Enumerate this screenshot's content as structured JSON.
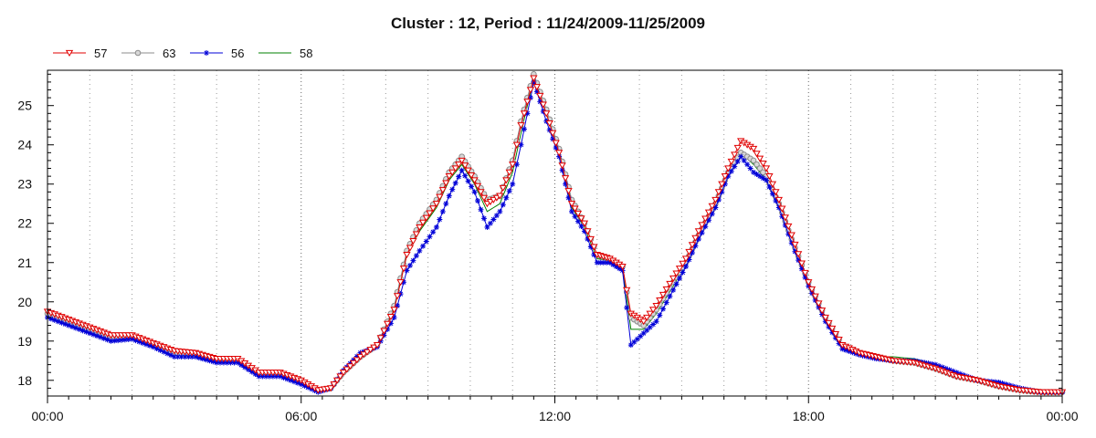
{
  "chart_data": {
    "type": "line",
    "title": "Cluster : 12, Period : 11/24/2009-11/25/2009",
    "xlabel": "",
    "ylabel": "",
    "x_tick_labels": [
      "00:00",
      "06:00",
      "12:00",
      "18:00",
      "00:00"
    ],
    "y_tick_labels": [
      "18",
      "19",
      "20",
      "21",
      "22",
      "23",
      "24",
      "25"
    ],
    "xlim": [
      0,
      24
    ],
    "ylim": [
      17.6,
      25.9
    ],
    "grid": true,
    "legend_position": "top-left",
    "series": [
      {
        "name": "57",
        "color": "#e00000",
        "marker": "triangle-down",
        "points": [
          [
            0,
            19.75
          ],
          [
            0.5,
            19.55
          ],
          [
            1,
            19.35
          ],
          [
            1.5,
            19.15
          ],
          [
            2,
            19.15
          ],
          [
            2.5,
            18.95
          ],
          [
            3,
            18.75
          ],
          [
            3.5,
            18.7
          ],
          [
            4,
            18.55
          ],
          [
            4.5,
            18.55
          ],
          [
            5,
            18.2
          ],
          [
            5.5,
            18.2
          ],
          [
            6,
            18.0
          ],
          [
            6.4,
            17.75
          ],
          [
            6.7,
            17.8
          ],
          [
            7,
            18.2
          ],
          [
            7.4,
            18.6
          ],
          [
            7.8,
            18.9
          ],
          [
            8.2,
            19.8
          ],
          [
            8.5,
            21.2
          ],
          [
            8.8,
            21.9
          ],
          [
            9.2,
            22.5
          ],
          [
            9.5,
            23.2
          ],
          [
            9.8,
            23.6
          ],
          [
            10.1,
            23.1
          ],
          [
            10.4,
            22.5
          ],
          [
            10.7,
            22.7
          ],
          [
            11.0,
            23.5
          ],
          [
            11.2,
            24.5
          ],
          [
            11.5,
            25.7
          ],
          [
            11.8,
            24.8
          ],
          [
            12.1,
            23.8
          ],
          [
            12.4,
            22.5
          ],
          [
            12.7,
            22.0
          ],
          [
            13.0,
            21.2
          ],
          [
            13.3,
            21.1
          ],
          [
            13.6,
            20.9
          ],
          [
            13.8,
            19.7
          ],
          [
            14.1,
            19.5
          ],
          [
            14.4,
            19.9
          ],
          [
            14.8,
            20.6
          ],
          [
            15.1,
            21.1
          ],
          [
            15.4,
            21.8
          ],
          [
            15.8,
            22.6
          ],
          [
            16.1,
            23.4
          ],
          [
            16.4,
            24.1
          ],
          [
            16.7,
            23.9
          ],
          [
            17.0,
            23.4
          ],
          [
            17.3,
            22.6
          ],
          [
            17.6,
            21.7
          ],
          [
            18.0,
            20.5
          ],
          [
            18.4,
            19.6
          ],
          [
            18.8,
            18.9
          ],
          [
            19.2,
            18.7
          ],
          [
            19.6,
            18.6
          ],
          [
            20.0,
            18.5
          ],
          [
            20.5,
            18.45
          ],
          [
            21.0,
            18.3
          ],
          [
            21.5,
            18.1
          ],
          [
            22.0,
            18.0
          ],
          [
            22.5,
            17.85
          ],
          [
            23.0,
            17.75
          ],
          [
            23.5,
            17.7
          ],
          [
            24.0,
            17.7
          ]
        ]
      },
      {
        "name": "63",
        "color": "#8c8c8c",
        "marker": "circle",
        "points": [
          [
            0,
            19.7
          ],
          [
            0.5,
            19.5
          ],
          [
            1,
            19.3
          ],
          [
            1.5,
            19.1
          ],
          [
            2,
            19.1
          ],
          [
            2.5,
            18.9
          ],
          [
            3,
            18.7
          ],
          [
            3.5,
            18.65
          ],
          [
            4,
            18.5
          ],
          [
            4.5,
            18.5
          ],
          [
            5,
            18.15
          ],
          [
            5.5,
            18.15
          ],
          [
            6,
            17.95
          ],
          [
            6.4,
            17.75
          ],
          [
            6.7,
            17.8
          ],
          [
            7,
            18.2
          ],
          [
            7.4,
            18.6
          ],
          [
            7.8,
            18.9
          ],
          [
            8.2,
            19.9
          ],
          [
            8.5,
            21.3
          ],
          [
            8.8,
            22.0
          ],
          [
            9.2,
            22.6
          ],
          [
            9.5,
            23.3
          ],
          [
            9.8,
            23.7
          ],
          [
            10.1,
            23.2
          ],
          [
            10.4,
            22.6
          ],
          [
            10.7,
            22.7
          ],
          [
            11.0,
            23.6
          ],
          [
            11.2,
            24.6
          ],
          [
            11.5,
            25.8
          ],
          [
            11.8,
            24.9
          ],
          [
            12.1,
            23.9
          ],
          [
            12.4,
            22.6
          ],
          [
            12.7,
            22.0
          ],
          [
            13.0,
            21.2
          ],
          [
            13.3,
            21.1
          ],
          [
            13.6,
            20.9
          ],
          [
            13.8,
            19.6
          ],
          [
            14.1,
            19.4
          ],
          [
            14.4,
            19.8
          ],
          [
            14.8,
            20.5
          ],
          [
            15.1,
            21.0
          ],
          [
            15.4,
            21.7
          ],
          [
            15.8,
            22.5
          ],
          [
            16.1,
            23.3
          ],
          [
            16.4,
            23.8
          ],
          [
            16.7,
            23.6
          ],
          [
            17.0,
            23.2
          ],
          [
            17.3,
            22.5
          ],
          [
            17.6,
            21.6
          ],
          [
            18.0,
            20.5
          ],
          [
            18.4,
            19.6
          ],
          [
            18.8,
            18.9
          ],
          [
            19.2,
            18.7
          ],
          [
            19.6,
            18.6
          ],
          [
            20.0,
            18.5
          ],
          [
            20.5,
            18.45
          ],
          [
            21.0,
            18.3
          ],
          [
            21.5,
            18.1
          ],
          [
            22.0,
            18.0
          ],
          [
            22.5,
            17.85
          ],
          [
            23.0,
            17.75
          ],
          [
            23.5,
            17.7
          ],
          [
            24.0,
            17.7
          ]
        ]
      },
      {
        "name": "56",
        "color": "#0000d8",
        "marker": "star",
        "points": [
          [
            0,
            19.6
          ],
          [
            0.5,
            19.4
          ],
          [
            1,
            19.2
          ],
          [
            1.5,
            19.0
          ],
          [
            2,
            19.05
          ],
          [
            2.5,
            18.85
          ],
          [
            3,
            18.6
          ],
          [
            3.5,
            18.6
          ],
          [
            4,
            18.45
          ],
          [
            4.5,
            18.45
          ],
          [
            5,
            18.1
          ],
          [
            5.5,
            18.1
          ],
          [
            6,
            17.9
          ],
          [
            6.4,
            17.7
          ],
          [
            6.7,
            17.8
          ],
          [
            7,
            18.25
          ],
          [
            7.4,
            18.7
          ],
          [
            7.8,
            18.85
          ],
          [
            8.2,
            19.6
          ],
          [
            8.5,
            20.8
          ],
          [
            8.8,
            21.3
          ],
          [
            9.2,
            21.9
          ],
          [
            9.5,
            22.7
          ],
          [
            9.8,
            23.35
          ],
          [
            10.1,
            22.8
          ],
          [
            10.4,
            21.9
          ],
          [
            10.7,
            22.3
          ],
          [
            11.0,
            23.0
          ],
          [
            11.2,
            24.0
          ],
          [
            11.5,
            25.6
          ],
          [
            11.8,
            24.6
          ],
          [
            12.1,
            23.7
          ],
          [
            12.4,
            22.3
          ],
          [
            12.7,
            21.8
          ],
          [
            13.0,
            21.0
          ],
          [
            13.3,
            21.0
          ],
          [
            13.6,
            20.8
          ],
          [
            13.8,
            18.9
          ],
          [
            14.1,
            19.2
          ],
          [
            14.4,
            19.5
          ],
          [
            14.8,
            20.3
          ],
          [
            15.1,
            20.9
          ],
          [
            15.4,
            21.6
          ],
          [
            15.8,
            22.4
          ],
          [
            16.1,
            23.2
          ],
          [
            16.4,
            23.7
          ],
          [
            16.7,
            23.3
          ],
          [
            17.0,
            23.1
          ],
          [
            17.3,
            22.4
          ],
          [
            17.6,
            21.5
          ],
          [
            18.0,
            20.4
          ],
          [
            18.4,
            19.5
          ],
          [
            18.8,
            18.8
          ],
          [
            19.2,
            18.65
          ],
          [
            19.6,
            18.55
          ],
          [
            20.0,
            18.5
          ],
          [
            20.5,
            18.5
          ],
          [
            21.0,
            18.4
          ],
          [
            21.5,
            18.2
          ],
          [
            22.0,
            18.0
          ],
          [
            22.5,
            17.95
          ],
          [
            23.0,
            17.8
          ],
          [
            23.5,
            17.7
          ],
          [
            24.0,
            17.7
          ]
        ]
      },
      {
        "name": "58",
        "color": "#008000",
        "marker": "none",
        "points": [
          [
            0,
            19.65
          ],
          [
            0.5,
            19.45
          ],
          [
            1,
            19.25
          ],
          [
            1.5,
            19.2
          ],
          [
            2,
            19.1
          ],
          [
            2.5,
            18.9
          ],
          [
            3,
            18.7
          ],
          [
            3.5,
            18.65
          ],
          [
            4,
            18.5
          ],
          [
            4.5,
            18.5
          ],
          [
            5,
            18.15
          ],
          [
            5.5,
            18.15
          ],
          [
            6,
            17.95
          ],
          [
            6.4,
            17.75
          ],
          [
            6.7,
            17.8
          ],
          [
            7,
            18.2
          ],
          [
            7.4,
            18.6
          ],
          [
            7.8,
            18.9
          ],
          [
            8.2,
            19.85
          ],
          [
            8.5,
            21.2
          ],
          [
            8.8,
            21.8
          ],
          [
            9.2,
            22.4
          ],
          [
            9.5,
            23.1
          ],
          [
            9.8,
            23.5
          ],
          [
            10.1,
            23.0
          ],
          [
            10.4,
            22.3
          ],
          [
            10.7,
            22.5
          ],
          [
            11.0,
            23.3
          ],
          [
            11.2,
            24.3
          ],
          [
            11.5,
            25.7
          ],
          [
            11.8,
            24.8
          ],
          [
            12.1,
            23.8
          ],
          [
            12.4,
            22.4
          ],
          [
            12.7,
            21.9
          ],
          [
            13.0,
            21.1
          ],
          [
            13.3,
            21.05
          ],
          [
            13.6,
            20.85
          ],
          [
            13.8,
            19.3
          ],
          [
            14.1,
            19.3
          ],
          [
            14.4,
            19.7
          ],
          [
            14.8,
            20.4
          ],
          [
            15.1,
            21.0
          ],
          [
            15.4,
            21.7
          ],
          [
            15.8,
            22.5
          ],
          [
            16.1,
            23.3
          ],
          [
            16.4,
            23.8
          ],
          [
            16.7,
            23.5
          ],
          [
            17.0,
            23.1
          ],
          [
            17.3,
            22.4
          ],
          [
            17.6,
            21.6
          ],
          [
            18.0,
            20.5
          ],
          [
            18.4,
            19.6
          ],
          [
            18.8,
            18.9
          ],
          [
            19.2,
            18.7
          ],
          [
            19.6,
            18.6
          ],
          [
            20.0,
            18.6
          ],
          [
            20.5,
            18.55
          ],
          [
            21.0,
            18.4
          ],
          [
            21.5,
            18.2
          ],
          [
            22.0,
            18.05
          ],
          [
            22.5,
            17.95
          ],
          [
            23.0,
            17.8
          ],
          [
            23.5,
            17.7
          ],
          [
            24.0,
            17.7
          ]
        ]
      }
    ]
  }
}
